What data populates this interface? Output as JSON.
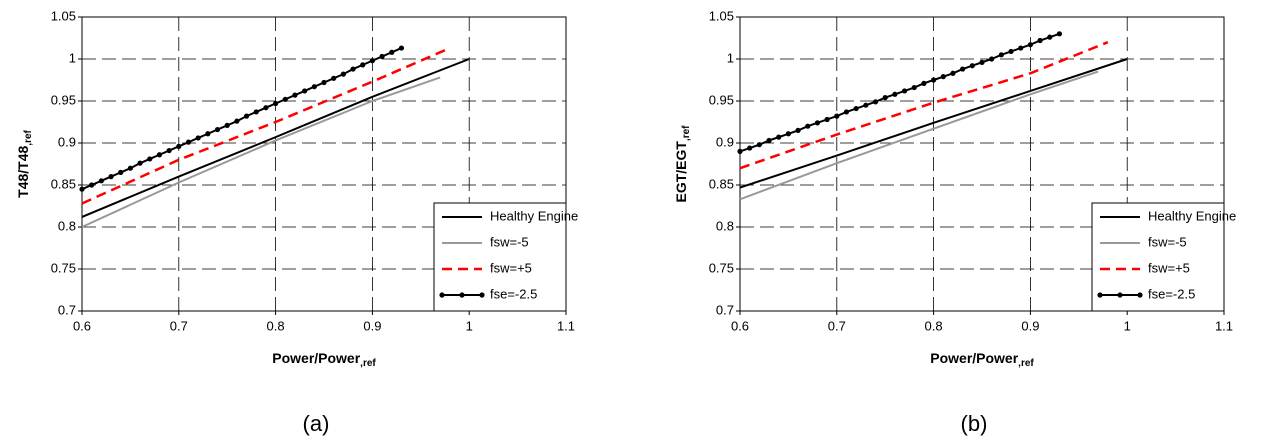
{
  "chart_data": [
    {
      "type": "line",
      "panel_label": "(a)",
      "xlabel": {
        "main": "Power/Power",
        "sub": ",ref"
      },
      "ylabel": {
        "main": "T48/T48",
        "sub": ",ref"
      },
      "xlim": [
        0.6,
        1.1
      ],
      "xticks": [
        0.6,
        0.7,
        0.8,
        0.9,
        1,
        1.1
      ],
      "ylim": [
        0.7,
        1.05
      ],
      "yticks": [
        0.7,
        0.75,
        0.8,
        0.85,
        0.9,
        0.95,
        1,
        1.05
      ],
      "grid": true,
      "legend": "lower right",
      "series": [
        {
          "name": "Healthy Engine",
          "color": "#000000",
          "dash": false,
          "marker": false,
          "x": [
            0.6,
            0.7,
            0.8,
            0.9,
            1.0
          ],
          "values": [
            0.812,
            0.86,
            0.907,
            0.955,
            1.0
          ]
        },
        {
          "name": "fsw=-5",
          "color": "#999999",
          "dash": false,
          "marker": false,
          "x": [
            0.6,
            0.7,
            0.8,
            0.9,
            0.97
          ],
          "values": [
            0.8,
            0.853,
            0.903,
            0.95,
            0.978
          ]
        },
        {
          "name": "fsw=+5",
          "color": "#ff0000",
          "dash": true,
          "marker": false,
          "x": [
            0.6,
            0.7,
            0.8,
            0.9,
            0.98
          ],
          "values": [
            0.828,
            0.88,
            0.925,
            0.973,
            1.013
          ]
        },
        {
          "name": "fse=-2.5",
          "color": "#000000",
          "dash": false,
          "marker": true,
          "x": [
            0.6,
            0.61,
            0.62,
            0.63,
            0.64,
            0.65,
            0.66,
            0.67,
            0.68,
            0.69,
            0.7,
            0.71,
            0.72,
            0.73,
            0.74,
            0.75,
            0.76,
            0.77,
            0.78,
            0.79,
            0.8,
            0.81,
            0.82,
            0.83,
            0.84,
            0.85,
            0.86,
            0.87,
            0.88,
            0.89,
            0.9,
            0.91,
            0.92,
            0.93
          ],
          "values": [
            0.845,
            0.85,
            0.855,
            0.86,
            0.865,
            0.87,
            0.876,
            0.881,
            0.886,
            0.891,
            0.896,
            0.901,
            0.906,
            0.911,
            0.916,
            0.921,
            0.926,
            0.932,
            0.937,
            0.942,
            0.947,
            0.952,
            0.957,
            0.962,
            0.967,
            0.972,
            0.977,
            0.982,
            0.988,
            0.993,
            0.998,
            1.003,
            1.008,
            1.013
          ]
        }
      ]
    },
    {
      "type": "line",
      "panel_label": "(b)",
      "xlabel": {
        "main": "Power/Power",
        "sub": ",ref"
      },
      "ylabel": {
        "main": "EGT/EGT",
        "sub": ",ref"
      },
      "xlim": [
        0.6,
        1.1
      ],
      "xticks": [
        0.6,
        0.7,
        0.8,
        0.9,
        1,
        1.1
      ],
      "ylim": [
        0.7,
        1.05
      ],
      "yticks": [
        0.7,
        0.75,
        0.8,
        0.85,
        0.9,
        0.95,
        1,
        1.05
      ],
      "grid": true,
      "legend": "lower right",
      "series": [
        {
          "name": "Healthy Engine",
          "color": "#000000",
          "dash": false,
          "marker": false,
          "x": [
            0.6,
            0.7,
            0.8,
            0.9,
            1.0
          ],
          "values": [
            0.847,
            0.885,
            0.924,
            0.962,
            1.0
          ]
        },
        {
          "name": "fsw=-5",
          "color": "#999999",
          "dash": false,
          "marker": false,
          "x": [
            0.6,
            0.7,
            0.8,
            0.9,
            0.97
          ],
          "values": [
            0.833,
            0.876,
            0.917,
            0.958,
            0.985
          ]
        },
        {
          "name": "fsw=+5",
          "color": "#ff0000",
          "dash": true,
          "marker": false,
          "x": [
            0.6,
            0.7,
            0.8,
            0.9,
            0.98
          ],
          "values": [
            0.87,
            0.91,
            0.948,
            0.983,
            1.02
          ]
        },
        {
          "name": "fse=-2.5",
          "color": "#000000",
          "dash": false,
          "marker": true,
          "x": [
            0.6,
            0.61,
            0.62,
            0.63,
            0.64,
            0.65,
            0.66,
            0.67,
            0.68,
            0.69,
            0.7,
            0.71,
            0.72,
            0.73,
            0.74,
            0.75,
            0.76,
            0.77,
            0.78,
            0.79,
            0.8,
            0.81,
            0.82,
            0.83,
            0.84,
            0.85,
            0.86,
            0.87,
            0.88,
            0.89,
            0.9,
            0.91,
            0.92,
            0.93
          ],
          "values": [
            0.89,
            0.894,
            0.898,
            0.903,
            0.907,
            0.911,
            0.915,
            0.92,
            0.924,
            0.928,
            0.932,
            0.937,
            0.941,
            0.945,
            0.949,
            0.954,
            0.958,
            0.962,
            0.966,
            0.971,
            0.975,
            0.979,
            0.983,
            0.988,
            0.992,
            0.996,
            1.0,
            1.005,
            1.009,
            1.013,
            1.017,
            1.022,
            1.026,
            1.03
          ]
        }
      ]
    }
  ]
}
